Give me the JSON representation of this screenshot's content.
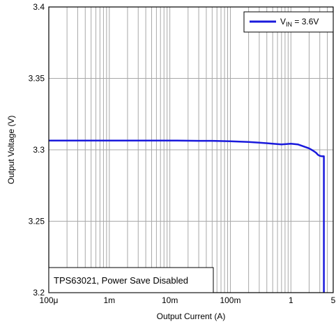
{
  "chart_data": {
    "type": "line",
    "xlabel": "Output Current (A)",
    "ylabel": "Output Voltage (V)",
    "x_scale": "log",
    "xlim": [
      0.0001,
      5
    ],
    "ylim": [
      3.2,
      3.4
    ],
    "grid": true,
    "x_ticks": [
      {
        "value": 0.0001,
        "label": "100μ"
      },
      {
        "value": 0.001,
        "label": "1m"
      },
      {
        "value": 0.01,
        "label": "10m"
      },
      {
        "value": 0.1,
        "label": "100m"
      },
      {
        "value": 1,
        "label": "1"
      },
      {
        "value": 5,
        "label": "5"
      }
    ],
    "y_ticks": [
      {
        "value": 3.2,
        "label": "3.2"
      },
      {
        "value": 3.25,
        "label": "3.25"
      },
      {
        "value": 3.3,
        "label": "3.3"
      },
      {
        "value": 3.35,
        "label": "3.35"
      },
      {
        "value": 3.4,
        "label": "3.4"
      }
    ],
    "series": [
      {
        "name_main": "V",
        "name_sub": "IN",
        "name_rest": " = 3.6V",
        "color": "#1a1adc",
        "x": [
          0.0001,
          0.001,
          0.01,
          0.03,
          0.05,
          0.1,
          0.2,
          0.3,
          0.5,
          0.7,
          1.0,
          1.3,
          1.6,
          2.0,
          2.3,
          2.6,
          2.8,
          3.0,
          3.2,
          3.4,
          3.5,
          3.5
        ],
        "y": [
          3.3065,
          3.3065,
          3.3065,
          3.3063,
          3.3063,
          3.306,
          3.3055,
          3.305,
          3.3043,
          3.3038,
          3.3043,
          3.3038,
          3.3025,
          3.301,
          3.2995,
          3.298,
          3.2965,
          3.2958,
          3.2955,
          3.2955,
          3.2955,
          3.2
        ]
      }
    ],
    "legend_position": "top-right",
    "annotation": "TPS63021, Power Save Disabled"
  }
}
